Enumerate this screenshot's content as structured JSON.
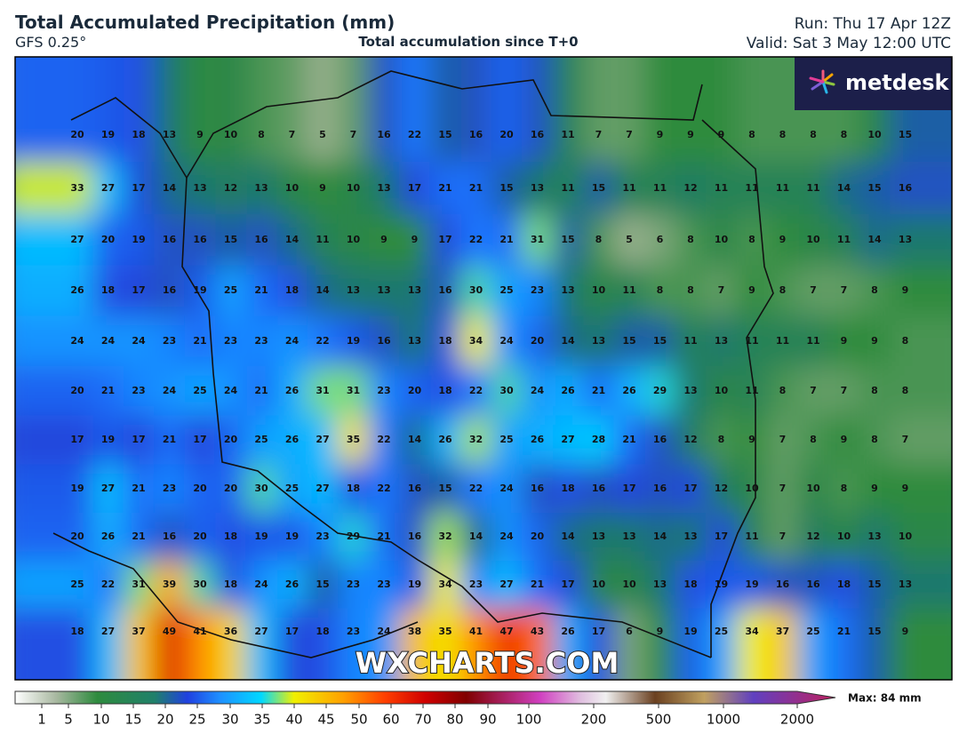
{
  "header": {
    "title": "Total Accumulated Precipitation (mm)",
    "model": "GFS 0.25°",
    "subtitle": "Total accumulation since T+0",
    "run": "Run: Thu 17 Apr 12Z",
    "valid": "Valid: Sat 3 May 12:00 UTC"
  },
  "logo": "metdesk",
  "watermark": "WXCHARTS.COM",
  "grid": [
    [
      20,
      19,
      18,
      13,
      9,
      10,
      8,
      7,
      5,
      7,
      16,
      22,
      15,
      16,
      20,
      16,
      11,
      7,
      7,
      9,
      9,
      9,
      8,
      8,
      8,
      8,
      10,
      15
    ],
    [
      33,
      27,
      17,
      14,
      13,
      12,
      13,
      10,
      9,
      10,
      13,
      17,
      21,
      21,
      15,
      13,
      11,
      15,
      11,
      11,
      12,
      11,
      11,
      11,
      11,
      14,
      15,
      16
    ],
    [
      27,
      20,
      19,
      16,
      16,
      15,
      16,
      14,
      11,
      10,
      9,
      9,
      17,
      22,
      21,
      31,
      15,
      8,
      5,
      6,
      8,
      10,
      8,
      9,
      10,
      11,
      14,
      13
    ],
    [
      26,
      18,
      17,
      16,
      19,
      25,
      21,
      18,
      14,
      13,
      13,
      13,
      16,
      30,
      25,
      23,
      13,
      10,
      11,
      8,
      8,
      7,
      9,
      8,
      7,
      7,
      8,
      9
    ],
    [
      24,
      24,
      24,
      23,
      21,
      23,
      23,
      24,
      22,
      19,
      16,
      13,
      18,
      34,
      24,
      20,
      14,
      13,
      15,
      15,
      11,
      13,
      11,
      11,
      11,
      9,
      9,
      8
    ],
    [
      20,
      21,
      23,
      24,
      25,
      24,
      21,
      26,
      31,
      31,
      23,
      20,
      18,
      22,
      30,
      24,
      26,
      21,
      26,
      29,
      13,
      10,
      11,
      8,
      7,
      7,
      8,
      8
    ],
    [
      17,
      19,
      17,
      21,
      17,
      20,
      25,
      26,
      27,
      35,
      22,
      14,
      26,
      32,
      25,
      26,
      27,
      28,
      21,
      16,
      12,
      8,
      9,
      7,
      8,
      9,
      8,
      7
    ],
    [
      19,
      27,
      21,
      23,
      20,
      20,
      30,
      25,
      27,
      18,
      22,
      16,
      15,
      22,
      24,
      16,
      18,
      16,
      17,
      16,
      17,
      12,
      10,
      7,
      10,
      8,
      9,
      9
    ],
    [
      20,
      26,
      21,
      16,
      20,
      18,
      19,
      19,
      23,
      29,
      21,
      16,
      32,
      14,
      24,
      20,
      14,
      13,
      13,
      14,
      13,
      17,
      11,
      7,
      12,
      10,
      13,
      10
    ],
    [
      25,
      22,
      31,
      39,
      30,
      18,
      24,
      26,
      15,
      23,
      23,
      19,
      34,
      23,
      27,
      21,
      17,
      10,
      10,
      13,
      18,
      19,
      19,
      16,
      16,
      18,
      15,
      13
    ],
    [
      18,
      27,
      37,
      49,
      41,
      36,
      27,
      17,
      18,
      23,
      24,
      38,
      35,
      41,
      47,
      43,
      26,
      17,
      6,
      9,
      19,
      25,
      34,
      37,
      25,
      21,
      15,
      9
    ]
  ],
  "legend": {
    "ticks": [
      1,
      5,
      10,
      15,
      20,
      25,
      30,
      35,
      40,
      45,
      50,
      60,
      70,
      80,
      90,
      100,
      200,
      500,
      1000,
      2000
    ],
    "max": "Max: 84 mm"
  }
}
